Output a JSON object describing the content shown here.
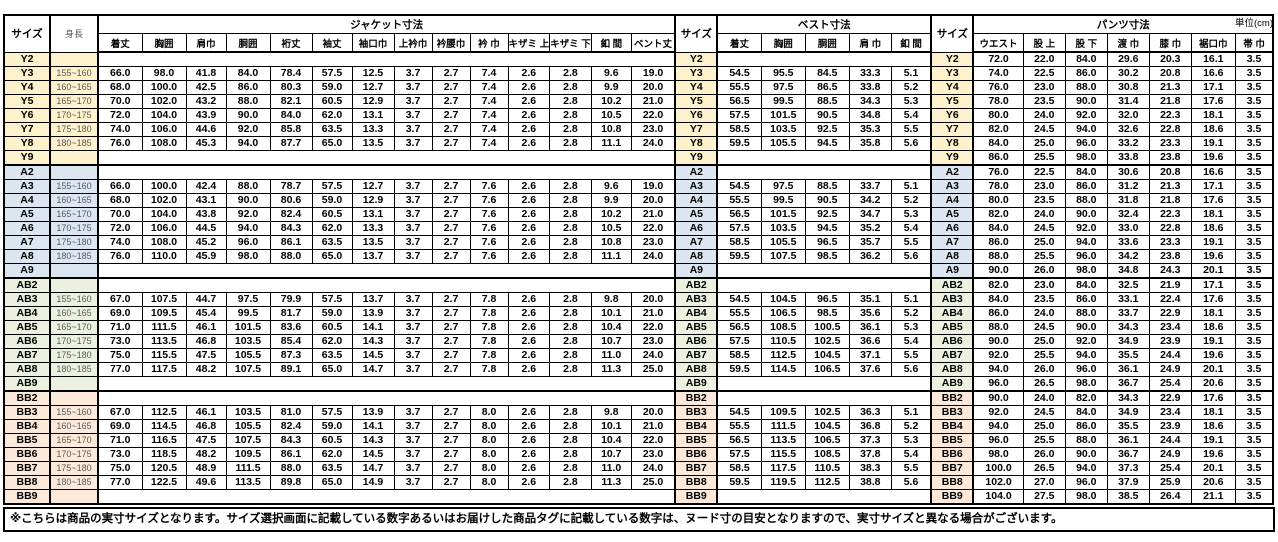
{
  "unit_label": "単位(cm)",
  "note": "※こちらは商品の実寸サイズとなります。サイズ選択画面に記載している数字あるいはお届けした商品タグに記載している数字は、ヌード寸の目安となりますので、実寸サイズと異なる場合がございます。",
  "colors": {
    "y_group": "#FDF2CC",
    "a_group": "#DCE6F1",
    "ab_group": "#EBF1DE",
    "bb_group": "#FDE9D9",
    "border": "#000000"
  },
  "table": {
    "size_header": "サイズ",
    "height_header": "身長",
    "jacket": {
      "title": "ジャケット寸法",
      "columns": [
        "着丈",
        "胸囲",
        "肩巾",
        "胴囲",
        "裄丈",
        "袖丈",
        "袖口巾",
        "上衿巾",
        "衿腰巾",
        "衿 巾",
        "キザミ 上",
        "キザミ 下",
        "釦 間",
        "ベント丈"
      ]
    },
    "vest": {
      "title": "ベスト寸法",
      "columns": [
        "着丈",
        "胸囲",
        "胴囲",
        "肩 巾",
        "釦 間"
      ]
    },
    "pants": {
      "title": "パンツ寸法",
      "columns": [
        "ウエスト",
        "股 上",
        "股 下",
        "渡 巾",
        "膝 巾",
        "裾口巾",
        "帯 巾"
      ]
    },
    "rows": [
      {
        "size": "Y2",
        "group": "y",
        "height": "",
        "jacket": [],
        "vest": [],
        "pants": [
          "72.0",
          "22.0",
          "84.0",
          "29.6",
          "20.3",
          "16.1",
          "3.5"
        ]
      },
      {
        "size": "Y3",
        "group": "y",
        "height": "155~160",
        "jacket": [
          "66.0",
          "98.0",
          "41.8",
          "84.0",
          "78.4",
          "57.5",
          "12.5",
          "3.7",
          "2.7",
          "7.4",
          "2.6",
          "2.8",
          "9.6",
          "19.0"
        ],
        "vest": [
          "54.5",
          "95.5",
          "84.5",
          "33.3",
          "5.1"
        ],
        "pants": [
          "74.0",
          "22.5",
          "86.0",
          "30.2",
          "20.8",
          "16.6",
          "3.5"
        ]
      },
      {
        "size": "Y4",
        "group": "y",
        "height": "160~165",
        "jacket": [
          "68.0",
          "100.0",
          "42.5",
          "86.0",
          "80.3",
          "59.0",
          "12.7",
          "3.7",
          "2.7",
          "7.4",
          "2.6",
          "2.8",
          "9.9",
          "20.0"
        ],
        "vest": [
          "55.5",
          "97.5",
          "86.5",
          "33.8",
          "5.2"
        ],
        "pants": [
          "76.0",
          "23.0",
          "88.0",
          "30.8",
          "21.3",
          "17.1",
          "3.5"
        ]
      },
      {
        "size": "Y5",
        "group": "y",
        "height": "165~170",
        "jacket": [
          "70.0",
          "102.0",
          "43.2",
          "88.0",
          "82.1",
          "60.5",
          "12.9",
          "3.7",
          "2.7",
          "7.4",
          "2.6",
          "2.8",
          "10.2",
          "21.0"
        ],
        "vest": [
          "56.5",
          "99.5",
          "88.5",
          "34.3",
          "5.3"
        ],
        "pants": [
          "78.0",
          "23.5",
          "90.0",
          "31.4",
          "21.8",
          "17.6",
          "3.5"
        ]
      },
      {
        "size": "Y6",
        "group": "y",
        "height": "170~175",
        "jacket": [
          "72.0",
          "104.0",
          "43.9",
          "90.0",
          "84.0",
          "62.0",
          "13.1",
          "3.7",
          "2.7",
          "7.4",
          "2.6",
          "2.8",
          "10.5",
          "22.0"
        ],
        "vest": [
          "57.5",
          "101.5",
          "90.5",
          "34.8",
          "5.4"
        ],
        "pants": [
          "80.0",
          "24.0",
          "92.0",
          "32.0",
          "22.3",
          "18.1",
          "3.5"
        ]
      },
      {
        "size": "Y7",
        "group": "y",
        "height": "175~180",
        "jacket": [
          "74.0",
          "106.0",
          "44.6",
          "92.0",
          "85.8",
          "63.5",
          "13.3",
          "3.7",
          "2.7",
          "7.4",
          "2.6",
          "2.8",
          "10.8",
          "23.0"
        ],
        "vest": [
          "58.5",
          "103.5",
          "92.5",
          "35.3",
          "5.5"
        ],
        "pants": [
          "82.0",
          "24.5",
          "94.0",
          "32.6",
          "22.8",
          "18.6",
          "3.5"
        ]
      },
      {
        "size": "Y8",
        "group": "y",
        "height": "180~185",
        "jacket": [
          "76.0",
          "108.0",
          "45.3",
          "94.0",
          "87.7",
          "65.0",
          "13.5",
          "3.7",
          "2.7",
          "7.4",
          "2.6",
          "2.8",
          "11.1",
          "24.0"
        ],
        "vest": [
          "59.5",
          "105.5",
          "94.5",
          "35.8",
          "5.6"
        ],
        "pants": [
          "84.0",
          "25.0",
          "96.0",
          "33.2",
          "23.3",
          "19.1",
          "3.5"
        ]
      },
      {
        "size": "Y9",
        "group": "y",
        "height": "",
        "jacket": [],
        "vest": [],
        "pants": [
          "86.0",
          "25.5",
          "98.0",
          "33.8",
          "23.8",
          "19.6",
          "3.5"
        ]
      },
      {
        "size": "A2",
        "group": "a",
        "height": "",
        "jacket": [],
        "vest": [],
        "pants": [
          "76.0",
          "22.5",
          "84.0",
          "30.6",
          "20.8",
          "16.6",
          "3.5"
        ]
      },
      {
        "size": "A3",
        "group": "a",
        "height": "155~160",
        "jacket": [
          "66.0",
          "100.0",
          "42.4",
          "88.0",
          "78.7",
          "57.5",
          "12.7",
          "3.7",
          "2.7",
          "7.6",
          "2.6",
          "2.8",
          "9.6",
          "19.0"
        ],
        "vest": [
          "54.5",
          "97.5",
          "88.5",
          "33.7",
          "5.1"
        ],
        "pants": [
          "78.0",
          "23.0",
          "86.0",
          "31.2",
          "21.3",
          "17.1",
          "3.5"
        ]
      },
      {
        "size": "A4",
        "group": "a",
        "height": "160~165",
        "jacket": [
          "68.0",
          "102.0",
          "43.1",
          "90.0",
          "80.6",
          "59.0",
          "12.9",
          "3.7",
          "2.7",
          "7.6",
          "2.6",
          "2.8",
          "9.9",
          "20.0"
        ],
        "vest": [
          "55.5",
          "99.5",
          "90.5",
          "34.2",
          "5.2"
        ],
        "pants": [
          "80.0",
          "23.5",
          "88.0",
          "31.8",
          "21.8",
          "17.6",
          "3.5"
        ]
      },
      {
        "size": "A5",
        "group": "a",
        "height": "165~170",
        "jacket": [
          "70.0",
          "104.0",
          "43.8",
          "92.0",
          "82.4",
          "60.5",
          "13.1",
          "3.7",
          "2.7",
          "7.6",
          "2.6",
          "2.8",
          "10.2",
          "21.0"
        ],
        "vest": [
          "56.5",
          "101.5",
          "92.5",
          "34.7",
          "5.3"
        ],
        "pants": [
          "82.0",
          "24.0",
          "90.0",
          "32.4",
          "22.3",
          "18.1",
          "3.5"
        ]
      },
      {
        "size": "A6",
        "group": "a",
        "height": "170~175",
        "jacket": [
          "72.0",
          "106.0",
          "44.5",
          "94.0",
          "84.3",
          "62.0",
          "13.3",
          "3.7",
          "2.7",
          "7.6",
          "2.6",
          "2.8",
          "10.5",
          "22.0"
        ],
        "vest": [
          "57.5",
          "103.5",
          "94.5",
          "35.2",
          "5.4"
        ],
        "pants": [
          "84.0",
          "24.5",
          "92.0",
          "33.0",
          "22.8",
          "18.6",
          "3.5"
        ]
      },
      {
        "size": "A7",
        "group": "a",
        "height": "175~180",
        "jacket": [
          "74.0",
          "108.0",
          "45.2",
          "96.0",
          "86.1",
          "63.5",
          "13.5",
          "3.7",
          "2.7",
          "7.6",
          "2.6",
          "2.8",
          "10.8",
          "23.0"
        ],
        "vest": [
          "58.5",
          "105.5",
          "96.5",
          "35.7",
          "5.5"
        ],
        "pants": [
          "86.0",
          "25.0",
          "94.0",
          "33.6",
          "23.3",
          "19.1",
          "3.5"
        ]
      },
      {
        "size": "A8",
        "group": "a",
        "height": "180~185",
        "jacket": [
          "76.0",
          "110.0",
          "45.9",
          "98.0",
          "88.0",
          "65.0",
          "13.7",
          "3.7",
          "2.7",
          "7.6",
          "2.6",
          "2.8",
          "11.1",
          "24.0"
        ],
        "vest": [
          "59.5",
          "107.5",
          "98.5",
          "36.2",
          "5.6"
        ],
        "pants": [
          "88.0",
          "25.5",
          "96.0",
          "34.2",
          "23.8",
          "19.6",
          "3.5"
        ]
      },
      {
        "size": "A9",
        "group": "a",
        "height": "",
        "jacket": [],
        "vest": [],
        "pants": [
          "90.0",
          "26.0",
          "98.0",
          "34.8",
          "24.3",
          "20.1",
          "3.5"
        ]
      },
      {
        "size": "AB2",
        "group": "ab",
        "height": "",
        "jacket": [],
        "vest": [],
        "pants": [
          "82.0",
          "23.0",
          "84.0",
          "32.5",
          "21.9",
          "17.1",
          "3.5"
        ]
      },
      {
        "size": "AB3",
        "group": "ab",
        "height": "155~160",
        "jacket": [
          "67.0",
          "107.5",
          "44.7",
          "97.5",
          "79.9",
          "57.5",
          "13.7",
          "3.7",
          "2.7",
          "7.8",
          "2.6",
          "2.8",
          "9.8",
          "20.0"
        ],
        "vest": [
          "54.5",
          "104.5",
          "96.5",
          "35.1",
          "5.1"
        ],
        "pants": [
          "84.0",
          "23.5",
          "86.0",
          "33.1",
          "22.4",
          "17.6",
          "3.5"
        ]
      },
      {
        "size": "AB4",
        "group": "ab",
        "height": "160~165",
        "jacket": [
          "69.0",
          "109.5",
          "45.4",
          "99.5",
          "81.7",
          "59.0",
          "13.9",
          "3.7",
          "2.7",
          "7.8",
          "2.6",
          "2.8",
          "10.1",
          "21.0"
        ],
        "vest": [
          "55.5",
          "106.5",
          "98.5",
          "35.6",
          "5.2"
        ],
        "pants": [
          "86.0",
          "24.0",
          "88.0",
          "33.7",
          "22.9",
          "18.1",
          "3.5"
        ]
      },
      {
        "size": "AB5",
        "group": "ab",
        "height": "165~170",
        "jacket": [
          "71.0",
          "111.5",
          "46.1",
          "101.5",
          "83.6",
          "60.5",
          "14.1",
          "3.7",
          "2.7",
          "7.8",
          "2.6",
          "2.8",
          "10.4",
          "22.0"
        ],
        "vest": [
          "56.5",
          "108.5",
          "100.5",
          "36.1",
          "5.3"
        ],
        "pants": [
          "88.0",
          "24.5",
          "90.0",
          "34.3",
          "23.4",
          "18.6",
          "3.5"
        ]
      },
      {
        "size": "AB6",
        "group": "ab",
        "height": "170~175",
        "jacket": [
          "73.0",
          "113.5",
          "46.8",
          "103.5",
          "85.4",
          "62.0",
          "14.3",
          "3.7",
          "2.7",
          "7.8",
          "2.6",
          "2.8",
          "10.7",
          "23.0"
        ],
        "vest": [
          "57.5",
          "110.5",
          "102.5",
          "36.6",
          "5.4"
        ],
        "pants": [
          "90.0",
          "25.0",
          "92.0",
          "34.9",
          "23.9",
          "19.1",
          "3.5"
        ]
      },
      {
        "size": "AB7",
        "group": "ab",
        "height": "175~180",
        "jacket": [
          "75.0",
          "115.5",
          "47.5",
          "105.5",
          "87.3",
          "63.5",
          "14.5",
          "3.7",
          "2.7",
          "7.8",
          "2.6",
          "2.8",
          "11.0",
          "24.0"
        ],
        "vest": [
          "58.5",
          "112.5",
          "104.5",
          "37.1",
          "5.5"
        ],
        "pants": [
          "92.0",
          "25.5",
          "94.0",
          "35.5",
          "24.4",
          "19.6",
          "3.5"
        ]
      },
      {
        "size": "AB8",
        "group": "ab",
        "height": "180~185",
        "jacket": [
          "77.0",
          "117.5",
          "48.2",
          "107.5",
          "89.1",
          "65.0",
          "14.7",
          "3.7",
          "2.7",
          "7.8",
          "2.6",
          "2.8",
          "11.3",
          "25.0"
        ],
        "vest": [
          "59.5",
          "114.5",
          "106.5",
          "37.6",
          "5.6"
        ],
        "pants": [
          "94.0",
          "26.0",
          "96.0",
          "36.1",
          "24.9",
          "20.1",
          "3.5"
        ]
      },
      {
        "size": "AB9",
        "group": "ab",
        "height": "",
        "jacket": [],
        "vest": [],
        "pants": [
          "96.0",
          "26.5",
          "98.0",
          "36.7",
          "25.4",
          "20.6",
          "3.5"
        ]
      },
      {
        "size": "BB2",
        "group": "bb",
        "height": "",
        "jacket": [],
        "vest": [],
        "pants": [
          "90.0",
          "24.0",
          "82.0",
          "34.3",
          "22.9",
          "17.6",
          "3.5"
        ]
      },
      {
        "size": "BB3",
        "group": "bb",
        "height": "155~160",
        "jacket": [
          "67.0",
          "112.5",
          "46.1",
          "103.5",
          "81.0",
          "57.5",
          "13.9",
          "3.7",
          "2.7",
          "8.0",
          "2.6",
          "2.8",
          "9.8",
          "20.0"
        ],
        "vest": [
          "54.5",
          "109.5",
          "102.5",
          "36.3",
          "5.1"
        ],
        "pants": [
          "92.0",
          "24.5",
          "84.0",
          "34.9",
          "23.4",
          "18.1",
          "3.5"
        ]
      },
      {
        "size": "BB4",
        "group": "bb",
        "height": "160~165",
        "jacket": [
          "69.0",
          "114.5",
          "46.8",
          "105.5",
          "82.4",
          "59.0",
          "14.1",
          "3.7",
          "2.7",
          "8.0",
          "2.6",
          "2.8",
          "10.1",
          "21.0"
        ],
        "vest": [
          "55.5",
          "111.5",
          "104.5",
          "36.8",
          "5.2"
        ],
        "pants": [
          "94.0",
          "25.0",
          "86.0",
          "35.5",
          "23.9",
          "18.6",
          "3.5"
        ]
      },
      {
        "size": "BB5",
        "group": "bb",
        "height": "165~170",
        "jacket": [
          "71.0",
          "116.5",
          "47.5",
          "107.5",
          "84.3",
          "60.5",
          "14.3",
          "3.7",
          "2.7",
          "8.0",
          "2.6",
          "2.8",
          "10.4",
          "22.0"
        ],
        "vest": [
          "56.5",
          "113.5",
          "106.5",
          "37.3",
          "5.3"
        ],
        "pants": [
          "96.0",
          "25.5",
          "88.0",
          "36.1",
          "24.4",
          "19.1",
          "3.5"
        ]
      },
      {
        "size": "BB6",
        "group": "bb",
        "height": "170~175",
        "jacket": [
          "73.0",
          "118.5",
          "48.2",
          "109.5",
          "86.1",
          "62.0",
          "14.5",
          "3.7",
          "2.7",
          "8.0",
          "2.6",
          "2.8",
          "10.7",
          "23.0"
        ],
        "vest": [
          "57.5",
          "115.5",
          "108.5",
          "37.8",
          "5.4"
        ],
        "pants": [
          "98.0",
          "26.0",
          "90.0",
          "36.7",
          "24.9",
          "19.6",
          "3.5"
        ]
      },
      {
        "size": "BB7",
        "group": "bb",
        "height": "175~180",
        "jacket": [
          "75.0",
          "120.5",
          "48.9",
          "111.5",
          "88.0",
          "63.5",
          "14.7",
          "3.7",
          "2.7",
          "8.0",
          "2.6",
          "2.8",
          "11.0",
          "24.0"
        ],
        "vest": [
          "58.5",
          "117.5",
          "110.5",
          "38.3",
          "5.5"
        ],
        "pants": [
          "100.0",
          "26.5",
          "94.0",
          "37.3",
          "25.4",
          "20.1",
          "3.5"
        ]
      },
      {
        "size": "BB8",
        "group": "bb",
        "height": "180~185",
        "jacket": [
          "77.0",
          "122.5",
          "49.6",
          "113.5",
          "89.8",
          "65.0",
          "14.9",
          "3.7",
          "2.7",
          "8.0",
          "2.6",
          "2.8",
          "11.3",
          "25.0"
        ],
        "vest": [
          "59.5",
          "119.5",
          "112.5",
          "38.8",
          "5.6"
        ],
        "pants": [
          "102.0",
          "27.0",
          "96.0",
          "37.9",
          "25.9",
          "20.6",
          "3.5"
        ]
      },
      {
        "size": "BB9",
        "group": "bb",
        "height": "",
        "jacket": [],
        "vest": [],
        "pants": [
          "104.0",
          "27.5",
          "98.0",
          "38.5",
          "26.4",
          "21.1",
          "3.5"
        ]
      }
    ]
  }
}
